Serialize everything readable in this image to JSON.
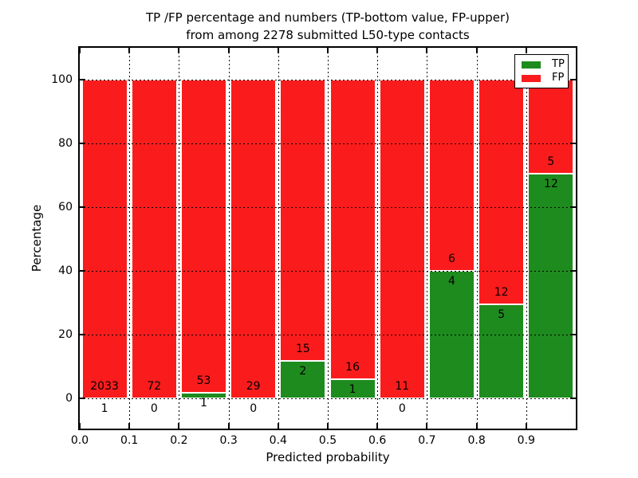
{
  "title": {
    "line1": "TP /FP percentage and numbers (TP-bottom value, FP-upper)",
    "line2": "from among 2278 submitted L50-type contacts"
  },
  "chart_data": {
    "type": "bar",
    "stacked": true,
    "orientation": "vertical",
    "total_submitted_contacts": 2278,
    "xlabel": "Predicted probability",
    "ylabel": "Percentage",
    "x_bin_edges": [
      0.0,
      0.1,
      0.2,
      0.3,
      0.4,
      0.5,
      0.6,
      0.7,
      0.8,
      0.9,
      1.0
    ],
    "xtick_labels": [
      "0.0",
      "0.1",
      "0.2",
      "0.3",
      "0.4",
      "0.5",
      "0.6",
      "0.7",
      "0.8",
      "0.9"
    ],
    "ytick_values": [
      0,
      20,
      40,
      60,
      80,
      100
    ],
    "ytick_labels": [
      "0",
      "20",
      "40",
      "60",
      "80",
      "100"
    ],
    "ylim": [
      -9.5,
      110
    ],
    "grid": "dotted",
    "legend_position": "upper right",
    "series": [
      {
        "name": "TP",
        "color": "#1E8B1E",
        "counts": [
          1,
          0,
          1,
          0,
          2,
          1,
          0,
          4,
          5,
          12
        ]
      },
      {
        "name": "FP",
        "color": "#FA1C1C",
        "counts": [
          2033,
          72,
          53,
          29,
          15,
          16,
          11,
          6,
          12,
          5
        ]
      }
    ],
    "tp_percent_of_bin": [
      0.05,
      0.0,
      1.85,
      0.0,
      11.76,
      5.88,
      0.0,
      40.0,
      29.41,
      70.59
    ],
    "annotation_note": "FP count printed above TP/FP boundary, TP count printed below it"
  },
  "colors": {
    "tp": "#1E8B1E",
    "fp": "#FA1C1C",
    "grid": "#000000",
    "background": "#FFFFFF",
    "text": "#000000"
  }
}
